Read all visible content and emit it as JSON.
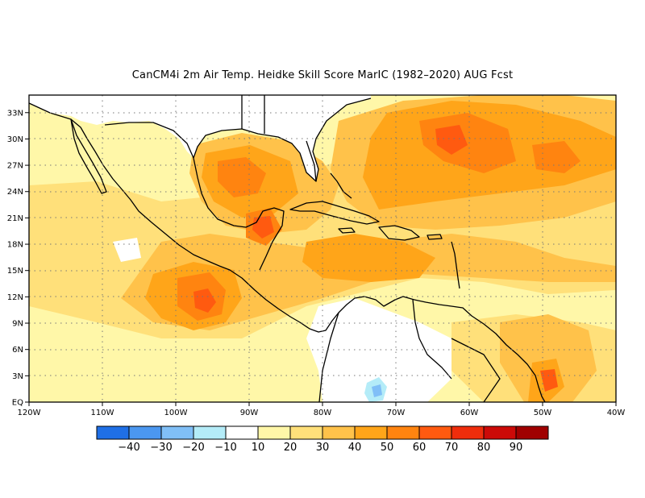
{
  "title": "CanCM4i  2m Air Temp. Heidke Skill Score MarIC (1982–2020) AUG Fcst",
  "map": {
    "lon_range": [
      -120,
      -40
    ],
    "lat_range": [
      0,
      35
    ],
    "lon_ticks": [
      {
        "value": -120,
        "label": "120W"
      },
      {
        "value": -110,
        "label": "110W"
      },
      {
        "value": -100,
        "label": "100W"
      },
      {
        "value": -90,
        "label": "90W"
      },
      {
        "value": -80,
        "label": "80W"
      },
      {
        "value": -70,
        "label": "70W"
      },
      {
        "value": -60,
        "label": "60W"
      },
      {
        "value": -50,
        "label": "50W"
      },
      {
        "value": -40,
        "label": "40W"
      }
    ],
    "lat_ticks": [
      {
        "value": 0,
        "label": "EQ"
      },
      {
        "value": 3,
        "label": "3N"
      },
      {
        "value": 6,
        "label": "6N"
      },
      {
        "value": 9,
        "label": "9N"
      },
      {
        "value": 12,
        "label": "12N"
      },
      {
        "value": 15,
        "label": "15N"
      },
      {
        "value": 18,
        "label": "18N"
      },
      {
        "value": 21,
        "label": "21N"
      },
      {
        "value": 24,
        "label": "24N"
      },
      {
        "value": 27,
        "label": "27N"
      },
      {
        "value": 30,
        "label": "30N"
      },
      {
        "value": 33,
        "label": "33N"
      }
    ],
    "grid": "dotted"
  },
  "colorbar": {
    "colors": [
      "#1f6fe6",
      "#4b97f0",
      "#80bff7",
      "#b4ecf8",
      "#ffffff",
      "#fff7a8",
      "#ffe07a",
      "#ffc24a",
      "#ffa519",
      "#ff8410",
      "#ff5a10",
      "#ef2d0c",
      "#cc0a08",
      "#a00000"
    ],
    "labels": [
      "−40",
      "−30",
      "−20",
      "−10",
      "10",
      "20",
      "30",
      "40",
      "50",
      "60",
      "70",
      "80",
      "90"
    ]
  },
  "land_color": "#ffffff",
  "coast_color": "#000000"
}
